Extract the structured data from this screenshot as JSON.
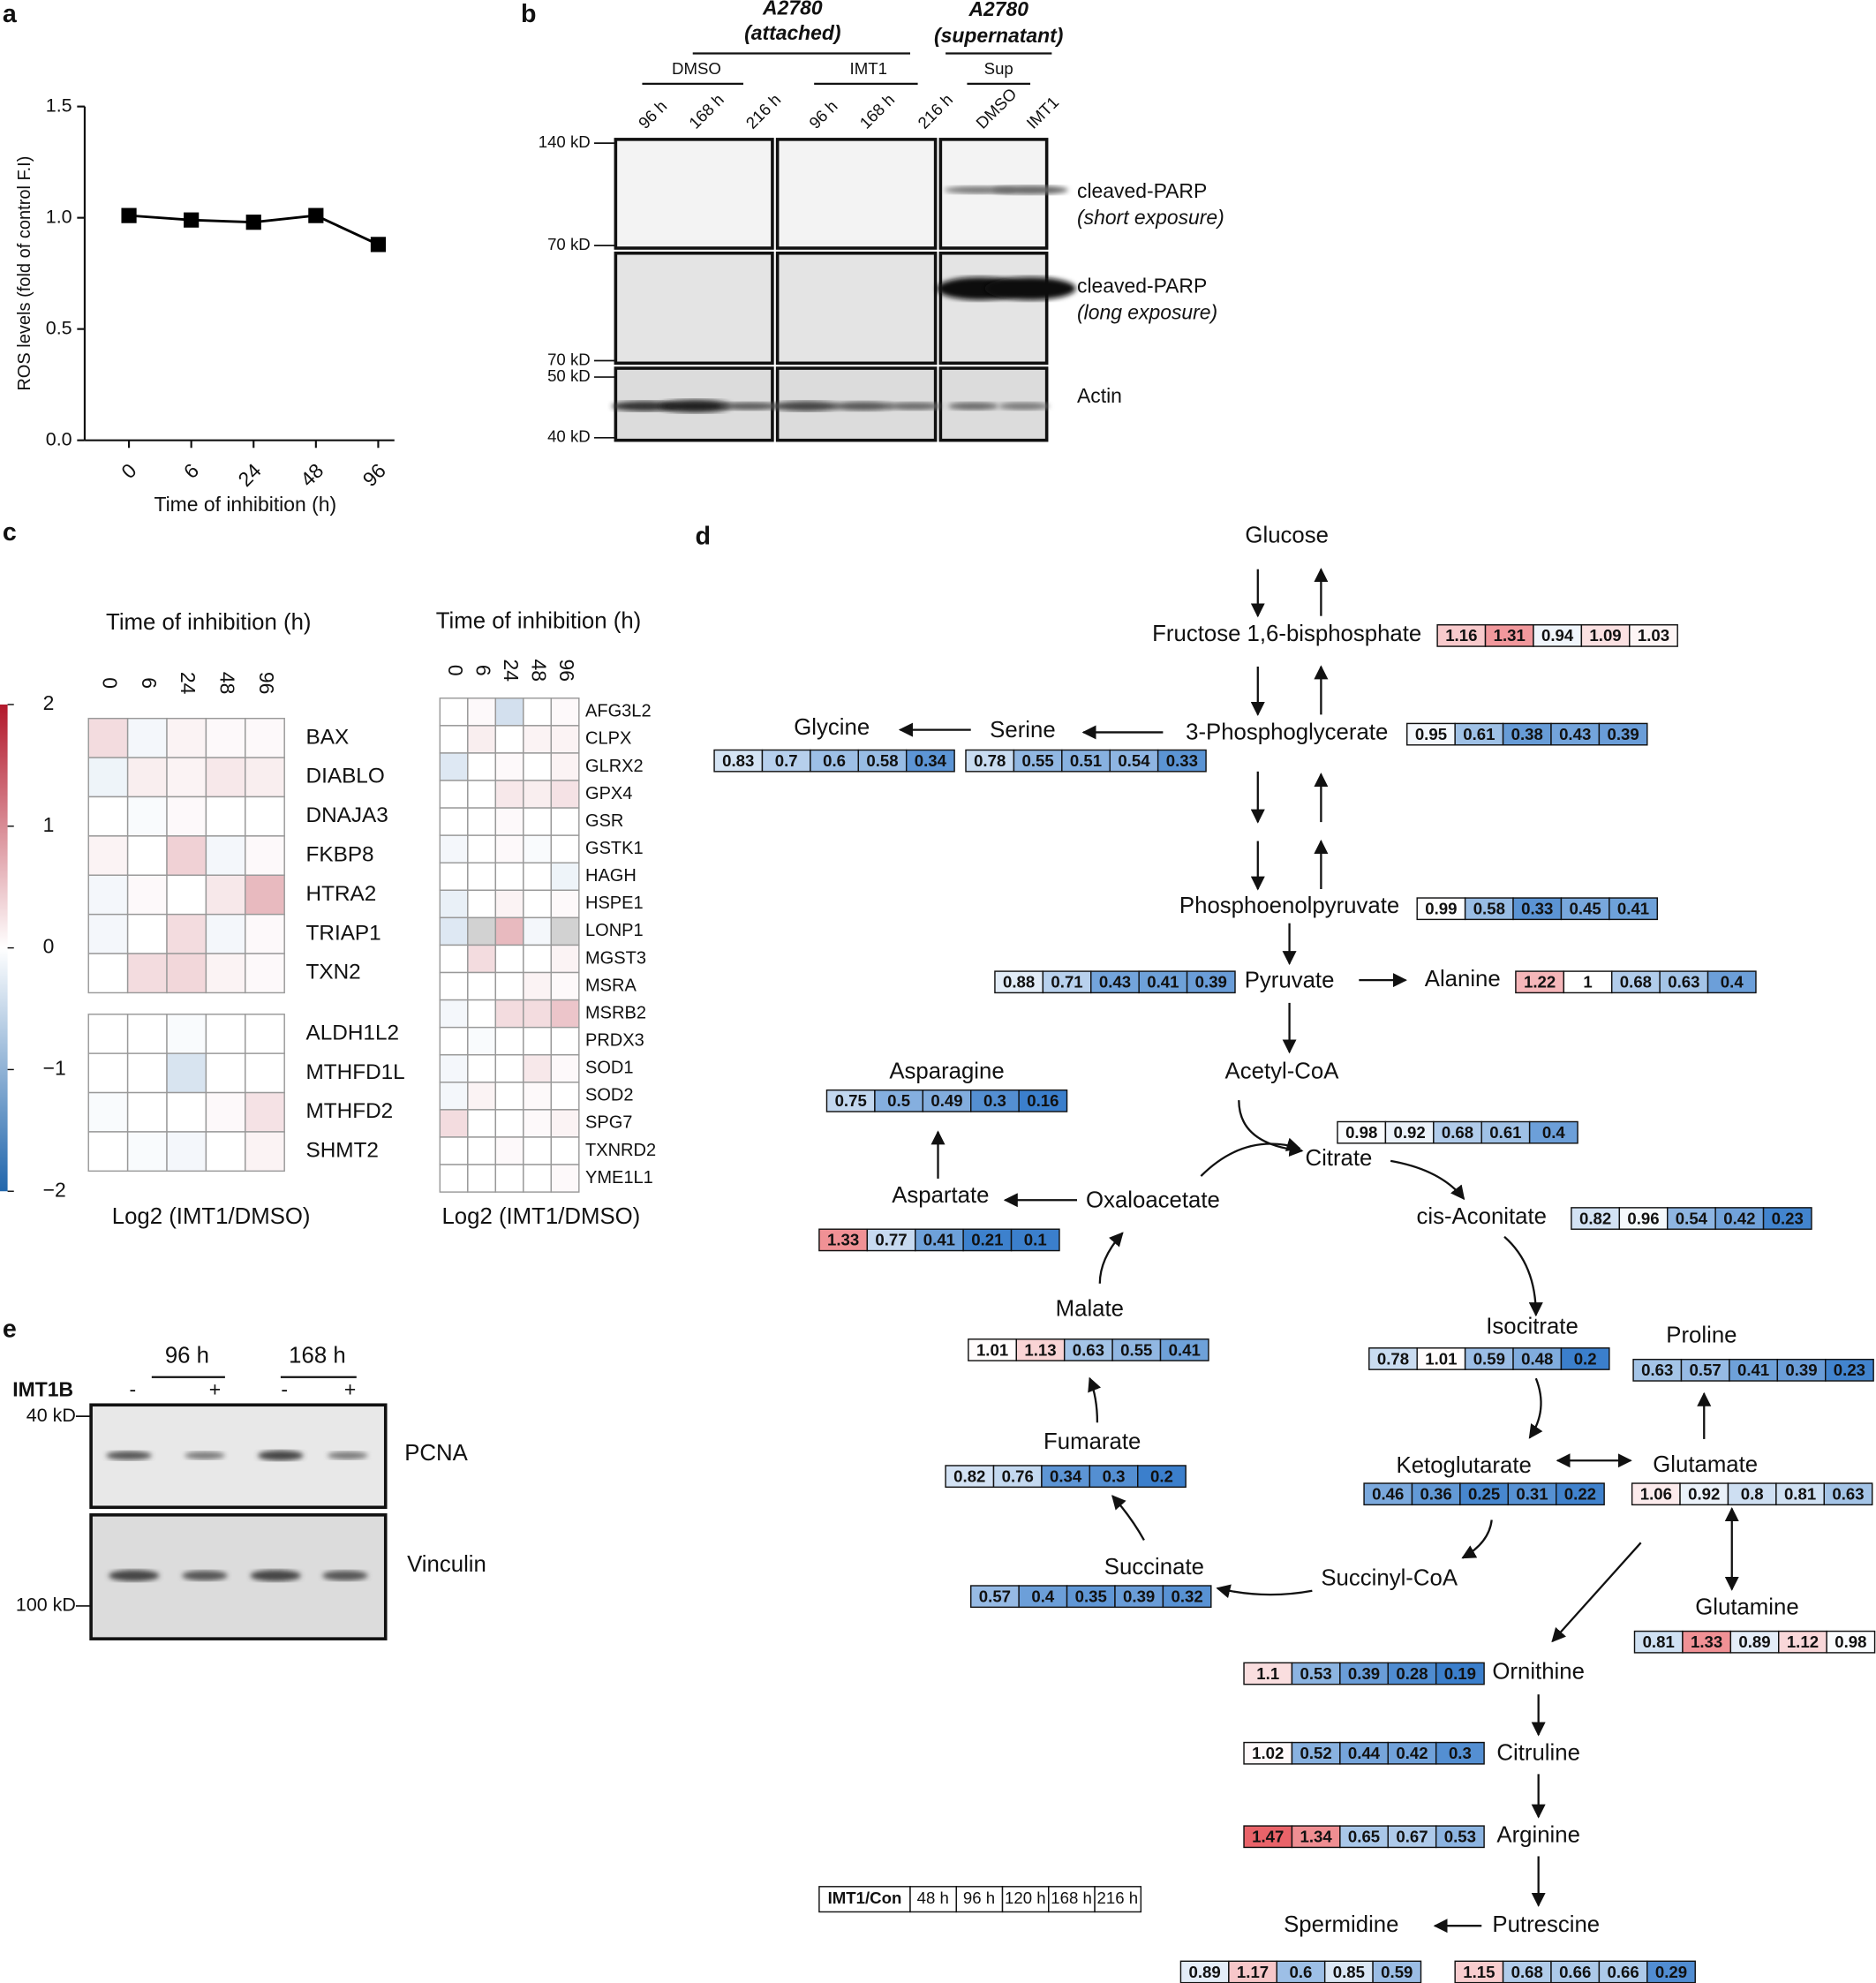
{
  "panel_labels": [
    "a",
    "b",
    "c",
    "d",
    "e"
  ],
  "chart_data": {
    "type": "line",
    "categories": [
      "0",
      "6",
      "24",
      "48",
      "96"
    ],
    "values": [
      1.01,
      0.99,
      0.98,
      1.01,
      0.88
    ],
    "ylim": [
      0,
      1.5
    ],
    "yticks": [
      {
        "value": 0,
        "label": "0.0"
      },
      {
        "value": 0.5,
        "label": "0.5"
      },
      {
        "value": 1,
        "label": "1.0"
      },
      {
        "value": 1.5,
        "label": "1.5"
      }
    ],
    "y_label": "ROS levels (fold of control F.I)",
    "x_label": "Time of inhibition (h)",
    "color": "#000000"
  },
  "blot_b": {
    "header_attached": [
      "A2780",
      "(attached)"
    ],
    "header_supernatant": [
      "A2780",
      "(supernatant)"
    ],
    "groups": [
      "DMSO",
      "IMT1",
      "Sup"
    ],
    "lanes": [
      "96 h",
      "168 h",
      "216 h",
      "96 h",
      "168 h",
      "216 h",
      "DMSO",
      "IMT1"
    ],
    "markers": [
      "140 kD",
      "70 kD",
      "70 kD",
      "50 kD",
      "40 kD"
    ],
    "labels": [
      "cleaved-PARP",
      "(short exposure)",
      "cleaved-PARP",
      "(long exposure)",
      "Actin"
    ]
  },
  "heatmaps": [
    {
      "title": "Time of inhibition (h)",
      "columns": [
        "0",
        "6",
        "24",
        "48",
        "96"
      ],
      "rows": [
        "BAX",
        "DIABLO",
        "DNAJA3",
        "FKBP8",
        "HTRA2",
        "TRIAP1",
        "TXN2",
        "ALDH1L2",
        "MTHFD1L",
        "MTHFD2",
        "SHMT2"
      ],
      "values": [
        [
          0.3,
          -0.1,
          0.1,
          0.05,
          0.05
        ],
        [
          -0.15,
          0.15,
          0.1,
          0.2,
          0.15
        ],
        [
          0,
          -0.05,
          0.05,
          0,
          0
        ],
        [
          0.1,
          0,
          0.4,
          -0.1,
          0.05
        ],
        [
          -0.1,
          0.05,
          0,
          0.2,
          0.6
        ],
        [
          -0.1,
          0,
          0.3,
          -0.1,
          0.05
        ],
        [
          0,
          0.3,
          0.35,
          0.1,
          0.05
        ],
        [
          0,
          0,
          -0.05,
          0,
          0
        ],
        [
          0,
          0,
          -0.35,
          0,
          0
        ],
        [
          -0.05,
          0,
          0,
          0.05,
          0.25
        ],
        [
          0,
          -0.05,
          -0.1,
          0,
          0.1
        ]
      ],
      "x_label": "Log2 (IMT1/DMSO)"
    },
    {
      "title": "Time of inhibition (h)",
      "columns": [
        "0",
        "6",
        "24",
        "48",
        "96"
      ],
      "rows": [
        "AFG3L2",
        "CLPX",
        "GLRX2",
        "GPX4",
        "GSR",
        "GSTK1",
        "HAGH",
        "HSPE1",
        "LONP1",
        "MGST3",
        "MSRA",
        "MSRB2",
        "PRDX3",
        "SOD1",
        "SOD2",
        "SPG7",
        "TXNRD2",
        "YME1L1"
      ],
      "values": [
        [
          0,
          0.05,
          -0.4,
          0,
          0.05
        ],
        [
          0,
          0.15,
          0,
          0.1,
          0.1
        ],
        [
          -0.3,
          0,
          0.05,
          0,
          0.1
        ],
        [
          0,
          0,
          0.2,
          0.15,
          0.25
        ],
        [
          0,
          0,
          0.05,
          0,
          0
        ],
        [
          -0.1,
          0,
          0.05,
          -0.05,
          0
        ],
        [
          0,
          0,
          0,
          0,
          -0.15
        ],
        [
          -0.2,
          0,
          0.1,
          0,
          0.05
        ],
        [
          -0.3,
          null,
          0.6,
          -0.1,
          null
        ],
        [
          0,
          0.3,
          0,
          0,
          0.1
        ],
        [
          0,
          0,
          0,
          0.1,
          0.05
        ],
        [
          -0.1,
          0,
          0.3,
          0.3,
          0.5
        ],
        [
          0,
          -0.05,
          0,
          0,
          0
        ],
        [
          -0.1,
          0,
          0,
          0.2,
          0.05
        ],
        [
          -0.1,
          0.1,
          0,
          0.05,
          0
        ],
        [
          0.3,
          0,
          0,
          0.05,
          0.1
        ],
        [
          0,
          0,
          0.05,
          0,
          0
        ],
        [
          0,
          0,
          0,
          0,
          0.05
        ]
      ],
      "x_label": "Log2 (IMT1/DMSO)"
    }
  ],
  "colorbar": {
    "lim": [
      -2,
      2
    ],
    "ticks": [
      2,
      1,
      0,
      {
        "value": -1,
        "label": "−1"
      },
      {
        "value": -2,
        "label": "−2"
      }
    ]
  },
  "pathway": {
    "metabolites": [
      {
        "name": "Glucose"
      },
      {
        "name": "Fructose 1,6-bisphosphate",
        "values": [
          1.16,
          1.31,
          0.94,
          1.09,
          1.03
        ]
      },
      {
        "name": "3-Phosphoglycerate",
        "values": [
          0.95,
          0.61,
          0.38,
          0.43,
          0.39
        ]
      },
      {
        "name": "Serine",
        "values": [
          0.78,
          0.55,
          0.51,
          0.54,
          0.33
        ]
      },
      {
        "name": "Glycine",
        "values": [
          0.83,
          0.7,
          0.6,
          0.58,
          0.34
        ]
      },
      {
        "name": "Phosphoenolpyruvate",
        "values": [
          0.99,
          0.58,
          0.33,
          0.45,
          0.41
        ]
      },
      {
        "name": "Pyruvate",
        "values": [
          0.88,
          0.71,
          0.43,
          0.41,
          0.39
        ]
      },
      {
        "name": "Alanine",
        "values": [
          1.22,
          1,
          0.68,
          0.63,
          0.4
        ]
      },
      {
        "name": "Acetyl-CoA"
      },
      {
        "name": "Citrate",
        "values": [
          0.98,
          0.92,
          0.68,
          0.61,
          0.4
        ]
      },
      {
        "name": "Asparagine",
        "values": [
          0.75,
          0.5,
          0.49,
          0.3,
          0.16
        ]
      },
      {
        "name": "Aspartate",
        "values": [
          1.33,
          0.77,
          0.41,
          0.21,
          0.1
        ]
      },
      {
        "name": "Oxaloacetate"
      },
      {
        "name": "cis-Aconitate",
        "values": [
          0.82,
          0.96,
          0.54,
          0.42,
          0.23
        ]
      },
      {
        "name": "Malate",
        "values": [
          1.01,
          1.13,
          0.63,
          0.55,
          0.41
        ]
      },
      {
        "name": "Isocitrate",
        "values": [
          0.78,
          1.01,
          0.59,
          0.48,
          0.2
        ]
      },
      {
        "name": "Proline",
        "values": [
          0.63,
          0.57,
          0.41,
          0.39,
          0.23
        ]
      },
      {
        "name": "Fumarate",
        "values": [
          0.82,
          0.76,
          0.34,
          0.3,
          0.2
        ]
      },
      {
        "name": "Ketoglutarate",
        "values": [
          0.46,
          0.36,
          0.25,
          0.31,
          0.22
        ]
      },
      {
        "name": "Glutamate",
        "values": [
          1.06,
          0.92,
          0.8,
          0.81,
          0.63
        ]
      },
      {
        "name": "Succinate",
        "values": [
          0.57,
          0.4,
          0.35,
          0.39,
          0.32
        ]
      },
      {
        "name": "Succinyl-CoA"
      },
      {
        "name": "Glutamine",
        "values": [
          0.81,
          1.33,
          0.89,
          1.12,
          0.98
        ]
      },
      {
        "name": "Ornithine",
        "values": [
          1.1,
          0.53,
          0.39,
          0.28,
          0.19
        ]
      },
      {
        "name": "Citruline",
        "values": [
          1.02,
          0.52,
          0.44,
          0.42,
          0.3
        ]
      },
      {
        "name": "Arginine",
        "values": [
          1.47,
          1.34,
          0.65,
          0.67,
          0.53
        ]
      },
      {
        "name": "Spermidine",
        "values": [
          0.89,
          1.17,
          0.6,
          0.85,
          0.59
        ]
      },
      {
        "name": "Putrescine",
        "values": [
          1.15,
          0.68,
          0.66,
          0.66,
          0.29
        ]
      }
    ],
    "legend": {
      "title": "IMT1/Con",
      "columns": [
        "48 h",
        "96 h",
        "120 h",
        "168 h",
        "216 h"
      ]
    }
  },
  "blot_e": {
    "times": [
      "96 h",
      "168 h"
    ],
    "treatment": "IMT1B",
    "signs": [
      "-",
      "+",
      "-",
      "+"
    ],
    "markers": [
      "40 kD",
      "100 kD"
    ],
    "labels": [
      "PCNA",
      "Vinculin"
    ]
  }
}
